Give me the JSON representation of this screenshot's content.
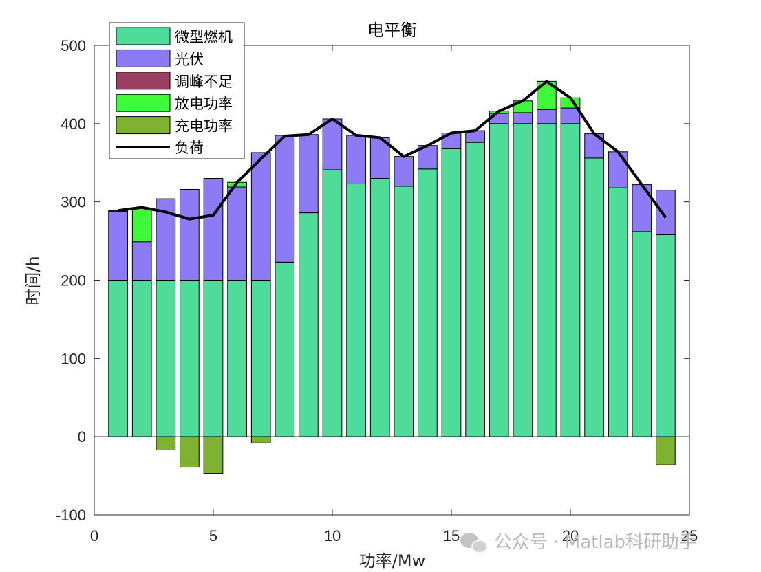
{
  "chart_data": {
    "type": "bar",
    "title": "电平衡",
    "xlabel": "功率/Mw",
    "ylabel": "时间/h",
    "xlim": [
      0,
      25
    ],
    "ylim": [
      -100,
      500
    ],
    "xticks": [
      0,
      5,
      10,
      15,
      20,
      25
    ],
    "yticks": [
      -100,
      0,
      100,
      200,
      300,
      400,
      500
    ],
    "x": [
      1,
      2,
      3,
      4,
      5,
      6,
      7,
      8,
      9,
      10,
      11,
      12,
      13,
      14,
      15,
      16,
      17,
      18,
      19,
      20,
      21,
      22,
      23,
      24
    ],
    "stacked": true,
    "series": [
      {
        "name": "微型燃机",
        "color": "#4fdb99",
        "values": [
          200,
          200,
          200,
          200,
          200,
          200,
          200,
          223,
          286,
          341,
          323,
          330,
          320,
          342,
          368,
          376,
          400,
          400,
          400,
          400,
          356,
          318,
          262,
          258
        ]
      },
      {
        "name": "光伏",
        "color": "#8c7bf5",
        "values": [
          88,
          49,
          104,
          116,
          130,
          119,
          163,
          162,
          100,
          65,
          62,
          52,
          38,
          30,
          20,
          15,
          13,
          14,
          18,
          20,
          31,
          46,
          60,
          57
        ]
      },
      {
        "name": "调峰不足",
        "color": "#9b3f63",
        "values": [
          0,
          0,
          0,
          0,
          0,
          0,
          0,
          0,
          0,
          0,
          0,
          0,
          0,
          0,
          0,
          0,
          0,
          0,
          0,
          0,
          0,
          0,
          0,
          0
        ]
      },
      {
        "name": "放电功率",
        "color": "#3efa3a",
        "values": [
          1,
          43,
          0,
          0,
          0,
          6,
          0,
          0,
          0,
          0,
          0,
          0,
          0,
          0,
          0,
          0,
          3,
          15,
          36,
          13,
          0,
          0,
          0,
          0
        ]
      },
      {
        "name": "充电功率",
        "color": "#7fb230",
        "values": [
          0,
          0,
          -17,
          -39,
          -47,
          0,
          -8,
          0,
          0,
          0,
          0,
          0,
          0,
          0,
          0,
          0,
          0,
          0,
          0,
          0,
          0,
          0,
          0,
          -36
        ]
      }
    ],
    "line": {
      "name": "负荷",
      "color": "#000000",
      "values": [
        289,
        293,
        287,
        278,
        283,
        325,
        355,
        384,
        386,
        406,
        385,
        382,
        358,
        372,
        388,
        391,
        416,
        429,
        454,
        433,
        387,
        364,
        322,
        280
      ]
    },
    "legend_position": "top-left",
    "grid": false
  },
  "watermark": {
    "text": "公众号 · Matlab科研助手"
  }
}
